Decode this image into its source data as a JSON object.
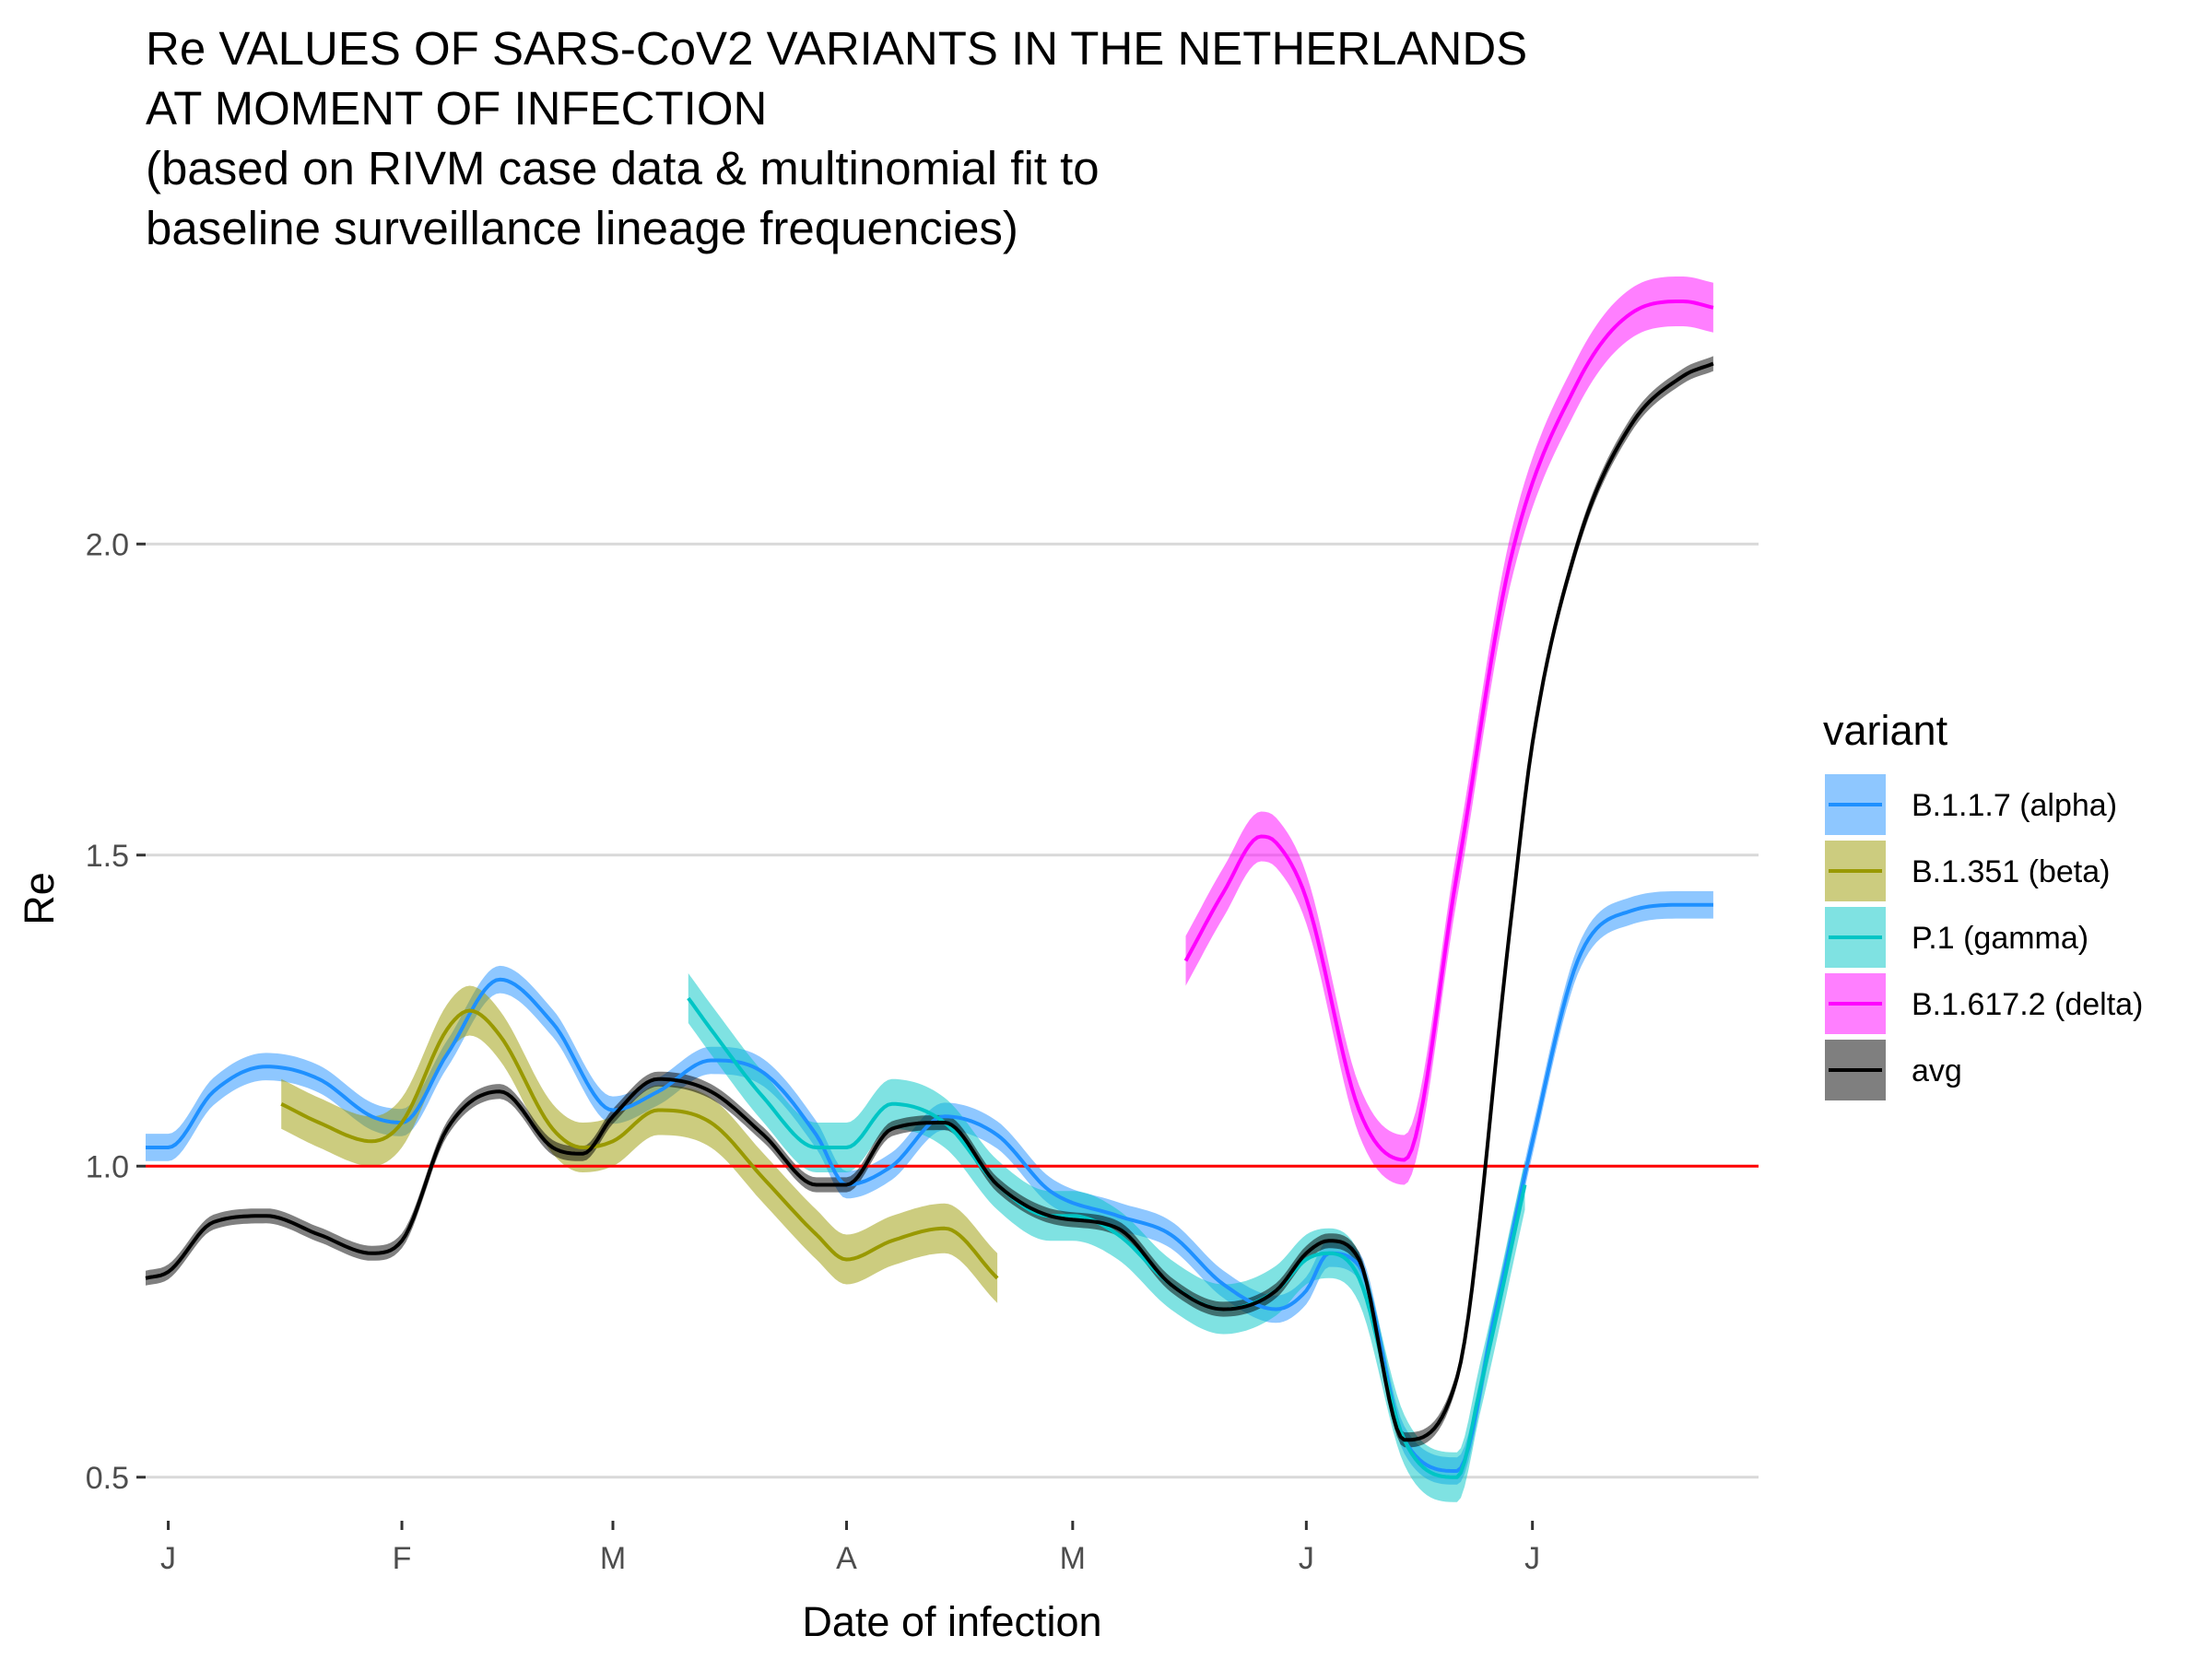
{
  "chart_data": {
    "type": "line",
    "title_lines": [
      "Re VALUES OF SARS-CoV2 VARIANTS IN THE NETHERLANDS",
      "AT MOMENT OF INFECTION",
      "(based on RIVM case data & multinomial fit to",
      "baseline surveillance lineage frequencies)"
    ],
    "xlabel": "Date of infection",
    "ylabel": "Re",
    "x_start": "2020-12-29",
    "x_end": "2021-07-31",
    "ylim": [
      0.43,
      2.43
    ],
    "y_ticks": [
      0.5,
      1.0,
      1.5,
      2.0
    ],
    "y_tick_labels": [
      "0.5",
      "1.0",
      "1.5",
      "2.0"
    ],
    "x_ticks": [
      "2021-01-01",
      "2021-02-01",
      "2021-03-01",
      "2021-04-01",
      "2021-05-01",
      "2021-06-01",
      "2021-07-01"
    ],
    "x_tick_labels": [
      "J",
      "F",
      "M",
      "A",
      "M",
      "J",
      "J"
    ],
    "grid": "horizontal major",
    "reference_line": {
      "y": 1.0,
      "color": "#ff0000"
    },
    "legend_title": "variant",
    "legend_position": "right",
    "series": [
      {
        "name": "B.1.1.7 (alpha)",
        "color": "#1e90ff",
        "band": 0.022,
        "x": [
          "2020-12-29",
          "2021-01-01",
          "2021-01-07",
          "2021-01-14",
          "2021-01-21",
          "2021-01-28",
          "2021-02-01",
          "2021-02-07",
          "2021-02-14",
          "2021-02-21",
          "2021-03-01",
          "2021-03-07",
          "2021-03-14",
          "2021-03-21",
          "2021-03-28",
          "2021-04-01",
          "2021-04-07",
          "2021-04-14",
          "2021-04-21",
          "2021-04-28",
          "2021-05-07",
          "2021-05-14",
          "2021-05-21",
          "2021-05-28",
          "2021-06-01",
          "2021-06-04",
          "2021-06-08",
          "2021-06-14",
          "2021-06-21",
          "2021-06-26",
          "2021-07-01",
          "2021-07-07",
          "2021-07-14",
          "2021-07-21",
          "2021-07-25"
        ],
        "y": [
          1.03,
          1.03,
          1.12,
          1.16,
          1.14,
          1.08,
          1.07,
          1.18,
          1.3,
          1.23,
          1.09,
          1.12,
          1.17,
          1.15,
          1.05,
          0.97,
          1.0,
          1.08,
          1.05,
          0.96,
          0.92,
          0.89,
          0.81,
          0.77,
          0.8,
          0.86,
          0.84,
          0.56,
          0.51,
          0.76,
          1.04,
          1.33,
          1.41,
          1.42,
          1.42
        ]
      },
      {
        "name": "B.1.351 (beta)",
        "color": "#999900",
        "band": 0.04,
        "x": [
          "2021-01-16",
          "2021-01-21",
          "2021-01-28",
          "2021-02-01",
          "2021-02-07",
          "2021-02-10",
          "2021-02-14",
          "2021-02-21",
          "2021-02-25",
          "2021-03-01",
          "2021-03-07",
          "2021-03-14",
          "2021-03-21",
          "2021-03-28",
          "2021-04-01",
          "2021-04-07",
          "2021-04-14",
          "2021-04-21"
        ],
        "y": [
          1.1,
          1.07,
          1.04,
          1.07,
          1.22,
          1.25,
          1.21,
          1.06,
          1.03,
          1.04,
          1.09,
          1.07,
          0.98,
          0.89,
          0.85,
          0.88,
          0.9,
          0.82
        ]
      },
      {
        "name": "P.1 (gamma)",
        "color": "#00c5c5",
        "band": 0.04,
        "x": [
          "2021-03-11",
          "2021-03-14",
          "2021-03-21",
          "2021-03-28",
          "2021-04-01",
          "2021-04-07",
          "2021-04-14",
          "2021-04-21",
          "2021-04-28",
          "2021-05-01",
          "2021-05-07",
          "2021-05-14",
          "2021-05-21",
          "2021-05-28",
          "2021-06-01",
          "2021-06-04",
          "2021-06-08",
          "2021-06-14",
          "2021-06-21",
          "2021-06-24",
          "2021-06-30"
        ],
        "y": [
          1.27,
          1.22,
          1.11,
          1.03,
          1.03,
          1.1,
          1.07,
          0.97,
          0.92,
          0.92,
          0.89,
          0.81,
          0.77,
          0.8,
          0.85,
          0.86,
          0.82,
          0.56,
          0.5,
          0.64,
          0.97
        ]
      },
      {
        "name": "B.1.617.2 (delta)",
        "color": "#ff00ff",
        "band": 0.04,
        "x": [
          "2021-05-16",
          "2021-05-21",
          "2021-05-26",
          "2021-05-28",
          "2021-06-01",
          "2021-06-08",
          "2021-06-14",
          "2021-06-21",
          "2021-06-28",
          "2021-07-07",
          "2021-07-14",
          "2021-07-21",
          "2021-07-25"
        ],
        "y": [
          1.33,
          1.44,
          1.53,
          1.52,
          1.43,
          1.09,
          1.01,
          1.47,
          1.97,
          2.26,
          2.37,
          2.39,
          2.38
        ]
      },
      {
        "name": "avg",
        "color": "#000000",
        "band": 0.012,
        "x": [
          "2020-12-29",
          "2021-01-01",
          "2021-01-07",
          "2021-01-14",
          "2021-01-21",
          "2021-01-28",
          "2021-02-01",
          "2021-02-07",
          "2021-02-14",
          "2021-02-21",
          "2021-02-25",
          "2021-03-01",
          "2021-03-07",
          "2021-03-14",
          "2021-03-21",
          "2021-03-28",
          "2021-04-01",
          "2021-04-07",
          "2021-04-14",
          "2021-04-21",
          "2021-04-28",
          "2021-05-07",
          "2021-05-14",
          "2021-05-21",
          "2021-05-28",
          "2021-06-01",
          "2021-06-04",
          "2021-06-08",
          "2021-06-14",
          "2021-06-21",
          "2021-06-28",
          "2021-07-01",
          "2021-07-07",
          "2021-07-14",
          "2021-07-21",
          "2021-07-25"
        ],
        "y": [
          0.82,
          0.83,
          0.91,
          0.92,
          0.89,
          0.86,
          0.88,
          1.06,
          1.12,
          1.03,
          1.02,
          1.08,
          1.14,
          1.12,
          1.05,
          0.97,
          0.97,
          1.06,
          1.07,
          0.97,
          0.92,
          0.9,
          0.81,
          0.77,
          0.8,
          0.86,
          0.88,
          0.85,
          0.56,
          0.66,
          1.38,
          1.68,
          2.0,
          2.19,
          2.27,
          2.29
        ]
      }
    ]
  }
}
